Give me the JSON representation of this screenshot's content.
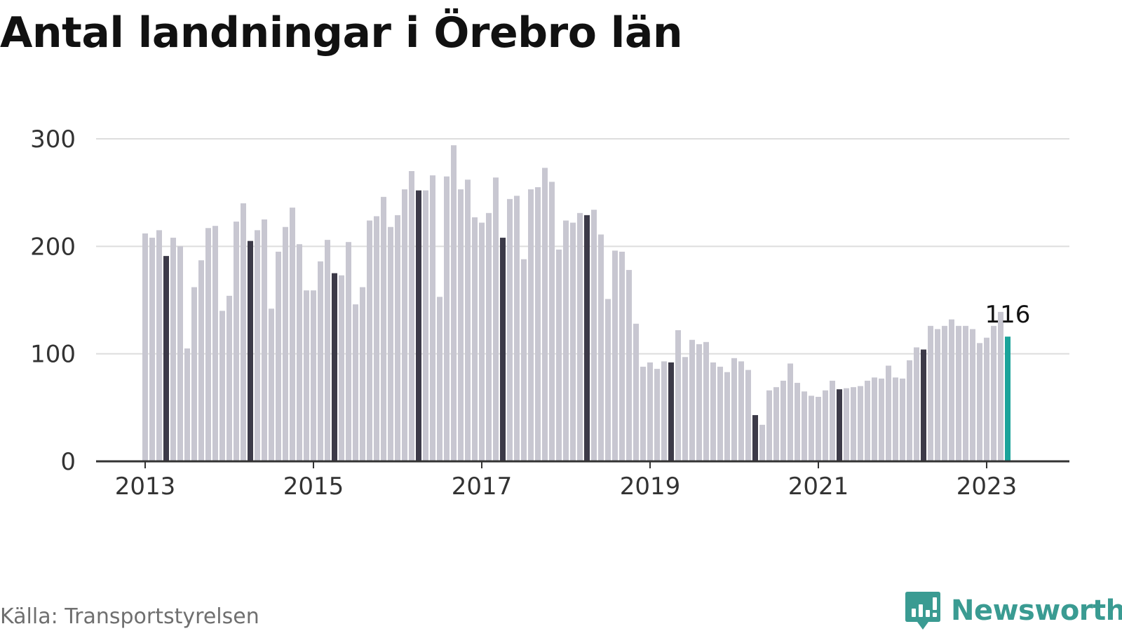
{
  "title": "Antal landningar i Örebro län",
  "source": "Källa: Transportstyrelsen",
  "brand": {
    "name": "Newsworthy",
    "icon": "newsworthy-logo-icon"
  },
  "colors": {
    "bar": "#c8c7d1",
    "highlight": "#3c3a48",
    "latest": "#1aa39a",
    "grid": "#dddddd",
    "axis": "#333333",
    "brand": "#3a9b92"
  },
  "chart_data": {
    "type": "bar",
    "title": "Antal landningar i Örebro län",
    "xlabel": "",
    "ylabel": "",
    "ylim": [
      0,
      300
    ],
    "yticks": [
      0,
      100,
      200,
      300
    ],
    "xticks": [
      "2013",
      "2015",
      "2017",
      "2019",
      "2021",
      "2023"
    ],
    "grid": true,
    "start": "2013-01",
    "highlight_month": "04",
    "categories": [
      "2013-01",
      "2013-02",
      "2013-03",
      "2013-04",
      "2013-05",
      "2013-06",
      "2013-07",
      "2013-08",
      "2013-09",
      "2013-10",
      "2013-11",
      "2013-12",
      "2014-01",
      "2014-02",
      "2014-03",
      "2014-04",
      "2014-05",
      "2014-06",
      "2014-07",
      "2014-08",
      "2014-09",
      "2014-10",
      "2014-11",
      "2014-12",
      "2015-01",
      "2015-02",
      "2015-03",
      "2015-04",
      "2015-05",
      "2015-06",
      "2015-07",
      "2015-08",
      "2015-09",
      "2015-10",
      "2015-11",
      "2015-12",
      "2016-01",
      "2016-02",
      "2016-03",
      "2016-04",
      "2016-05",
      "2016-06",
      "2016-07",
      "2016-08",
      "2016-09",
      "2016-10",
      "2016-11",
      "2016-12",
      "2017-01",
      "2017-02",
      "2017-03",
      "2017-04",
      "2017-05",
      "2017-06",
      "2017-07",
      "2017-08",
      "2017-09",
      "2017-10",
      "2017-11",
      "2017-12",
      "2018-01",
      "2018-02",
      "2018-03",
      "2018-04",
      "2018-05",
      "2018-06",
      "2018-07",
      "2018-08",
      "2018-09",
      "2018-10",
      "2018-11",
      "2018-12",
      "2019-01",
      "2019-02",
      "2019-03",
      "2019-04",
      "2019-05",
      "2019-06",
      "2019-07",
      "2019-08",
      "2019-09",
      "2019-10",
      "2019-11",
      "2019-12",
      "2020-01",
      "2020-02",
      "2020-03",
      "2020-04",
      "2020-05",
      "2020-06",
      "2020-07",
      "2020-08",
      "2020-09",
      "2020-10",
      "2020-11",
      "2020-12",
      "2021-01",
      "2021-02",
      "2021-03",
      "2021-04",
      "2021-05",
      "2021-06",
      "2021-07",
      "2021-08",
      "2021-09",
      "2021-10",
      "2021-11",
      "2021-12",
      "2022-01",
      "2022-02",
      "2022-03",
      "2022-04",
      "2022-05",
      "2022-06",
      "2022-07",
      "2022-08",
      "2022-09",
      "2022-10",
      "2022-11",
      "2022-12",
      "2023-01",
      "2023-02",
      "2023-03",
      "2023-04"
    ],
    "values": [
      212,
      208,
      215,
      191,
      208,
      200,
      105,
      162,
      187,
      217,
      219,
      140,
      154,
      223,
      240,
      205,
      215,
      225,
      142,
      195,
      218,
      236,
      202,
      159,
      159,
      186,
      206,
      175,
      173,
      204,
      146,
      162,
      224,
      228,
      246,
      218,
      229,
      253,
      270,
      252,
      252,
      266,
      153,
      265,
      294,
      253,
      262,
      227,
      222,
      231,
      264,
      208,
      244,
      247,
      188,
      253,
      255,
      273,
      260,
      197,
      224,
      222,
      231,
      229,
      234,
      211,
      151,
      196,
      195,
      178,
      128,
      88,
      92,
      86,
      93,
      92,
      122,
      97,
      113,
      109,
      111,
      92,
      88,
      83,
      96,
      93,
      85,
      43,
      34,
      66,
      69,
      75,
      91,
      73,
      65,
      61,
      60,
      66,
      75,
      67,
      68,
      69,
      70,
      75,
      78,
      77,
      89,
      78,
      77,
      94,
      106,
      104,
      126,
      123,
      126,
      132,
      126,
      126,
      123,
      110,
      115,
      126,
      139,
      116
    ],
    "annotation": {
      "label": "116",
      "category": "2023-04"
    }
  }
}
